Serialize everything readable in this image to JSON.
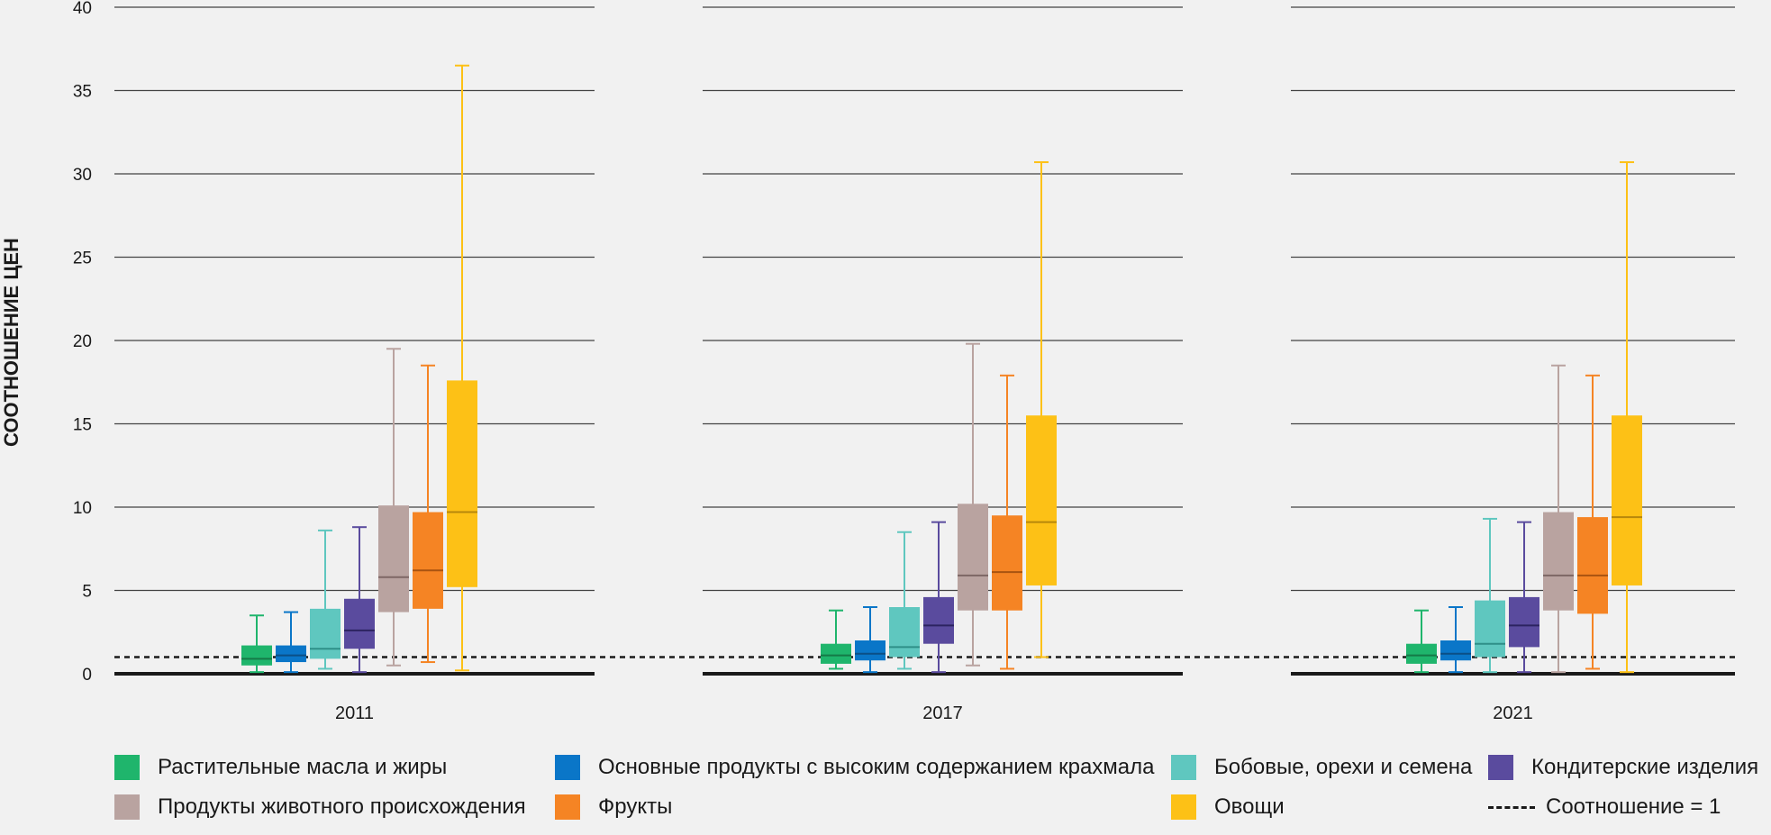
{
  "chart_data": {
    "type": "boxplot",
    "ylabel": "СООТНОШЕНИЕ ЦЕН",
    "ylim": [
      0,
      40
    ],
    "yticks": [
      0,
      5,
      10,
      15,
      20,
      25,
      30,
      35,
      40
    ],
    "reference_line": {
      "value": 1,
      "label": "Соотношение = 1",
      "style": "dashed"
    },
    "groups": [
      {
        "label": "2011",
        "boxes": [
          {
            "series": "Растительные масла и жиры",
            "min": 0.1,
            "q1": 0.5,
            "median": 0.9,
            "q3": 1.7,
            "max": 3.5
          },
          {
            "series": "Основные продукты с высоким содержанием крахмала",
            "min": 0.1,
            "q1": 0.7,
            "median": 1.1,
            "q3": 1.7,
            "max": 3.7
          },
          {
            "series": "Бобовые, орехи и семена",
            "min": 0.3,
            "q1": 0.9,
            "median": 1.5,
            "q3": 3.9,
            "max": 8.6
          },
          {
            "series": "Кондитерские изделия",
            "min": 0.1,
            "q1": 1.5,
            "median": 2.6,
            "q3": 4.5,
            "max": 8.8
          },
          {
            "series": "Продукты животного происхождения",
            "min": 0.5,
            "q1": 3.7,
            "median": 5.8,
            "q3": 10.1,
            "max": 19.5
          },
          {
            "series": "Фрукты",
            "min": 0.7,
            "q1": 3.9,
            "median": 6.2,
            "q3": 9.7,
            "max": 18.5
          },
          {
            "series": "Овощи",
            "min": 0.2,
            "q1": 5.2,
            "median": 9.7,
            "q3": 17.6,
            "max": 36.5
          }
        ]
      },
      {
        "label": "2017",
        "boxes": [
          {
            "series": "Растительные масла и жиры",
            "min": 0.3,
            "q1": 0.6,
            "median": 1.1,
            "q3": 1.8,
            "max": 3.8
          },
          {
            "series": "Основные продукты с высоким содержанием крахмала",
            "min": 0.1,
            "q1": 0.8,
            "median": 1.2,
            "q3": 2.0,
            "max": 4.0
          },
          {
            "series": "Бобовые, орехи и семена",
            "min": 0.3,
            "q1": 1.0,
            "median": 1.6,
            "q3": 4.0,
            "max": 8.5
          },
          {
            "series": "Кондитерские изделия",
            "min": 0.1,
            "q1": 1.8,
            "median": 2.9,
            "q3": 4.6,
            "max": 9.1
          },
          {
            "series": "Продукты животного происхождения",
            "min": 0.5,
            "q1": 3.8,
            "median": 5.9,
            "q3": 10.2,
            "max": 19.8
          },
          {
            "series": "Фрукты",
            "min": 0.3,
            "q1": 3.8,
            "median": 6.1,
            "q3": 9.5,
            "max": 17.9
          },
          {
            "series": "Овощи",
            "min": 1.0,
            "q1": 5.3,
            "median": 9.1,
            "q3": 15.5,
            "max": 30.7
          }
        ]
      },
      {
        "label": "2021",
        "boxes": [
          {
            "series": "Растительные масла и жиры",
            "min": 0.1,
            "q1": 0.6,
            "median": 1.1,
            "q3": 1.8,
            "max": 3.8
          },
          {
            "series": "Основные продукты с высоким содержанием крахмала",
            "min": 0.1,
            "q1": 0.8,
            "median": 1.2,
            "q3": 2.0,
            "max": 4.0
          },
          {
            "series": "Бобовые, орехи и семена",
            "min": 0.1,
            "q1": 1.0,
            "median": 1.8,
            "q3": 4.4,
            "max": 9.3
          },
          {
            "series": "Кондитерские изделия",
            "min": 0.1,
            "q1": 1.6,
            "median": 2.9,
            "q3": 4.6,
            "max": 9.1
          },
          {
            "series": "Продукты животного происхождения",
            "min": 0.1,
            "q1": 3.8,
            "median": 5.9,
            "q3": 9.7,
            "max": 18.5
          },
          {
            "series": "Фрукты",
            "min": 0.3,
            "q1": 3.6,
            "median": 5.9,
            "q3": 9.4,
            "max": 17.9
          },
          {
            "series": "Овощи",
            "min": 0.1,
            "q1": 5.3,
            "median": 9.4,
            "q3": 15.5,
            "max": 30.7
          }
        ]
      }
    ],
    "legend": [
      {
        "name": "Растительные масла и жиры",
        "color": "#1fb56c"
      },
      {
        "name": "Основные продукты с высоким содержанием крахмала",
        "color": "#0a76c8"
      },
      {
        "name": "Бобовые, орехи и семена",
        "color": "#5fc7bf"
      },
      {
        "name": "Кондитерские изделия",
        "color": "#5a4b9e"
      },
      {
        "name": "Продукты животного происхождения",
        "color": "#b9a3a0"
      },
      {
        "name": "Фрукты",
        "color": "#f58424"
      },
      {
        "name": "Овощи",
        "color": "#fdc116"
      }
    ],
    "legend_placement": "bottom",
    "grid": true
  }
}
